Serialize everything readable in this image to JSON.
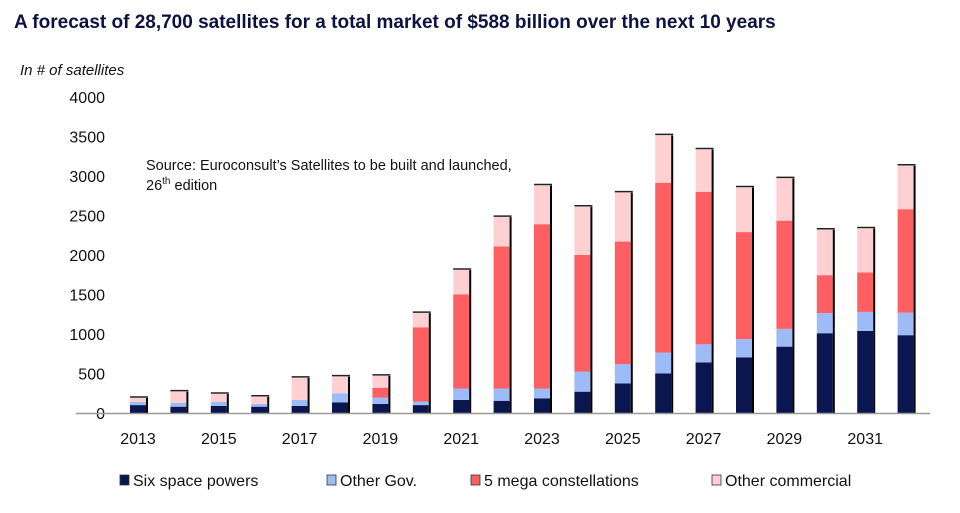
{
  "chart_data": {
    "type": "bar",
    "stacked": true,
    "title": "A forecast of 28,700 satellites for a total market of $588 billion over the next 10 years",
    "ylabel": "In # of satellites",
    "xlabel": "",
    "ylim": [
      0,
      4000
    ],
    "yticks": [
      0,
      500,
      1000,
      1500,
      2000,
      2500,
      3000,
      3500,
      4000
    ],
    "grid": false,
    "legend_position": "bottom",
    "annotation": {
      "line1": "Source: Euroconsult’s Satellites to be built and launched,",
      "line2_num": "26",
      "line2_sup": "th",
      "line2_rest": " edition"
    },
    "categories": [
      "2013",
      "2014",
      "2015",
      "2016",
      "2017",
      "2018",
      "2019",
      "2020",
      "2021",
      "2022",
      "2023",
      "2024",
      "2025",
      "2026",
      "2027",
      "2028",
      "2029",
      "2030",
      "2031",
      "2032"
    ],
    "xtick_labels": [
      "2013",
      "",
      "2015",
      "",
      "2017",
      "",
      "2019",
      "",
      "2021",
      "",
      "2023",
      "",
      "2025",
      "",
      "2027",
      "",
      "2029",
      "",
      "2031",
      ""
    ],
    "series": [
      {
        "name": "Six space powers",
        "color": "#0a1650",
        "values": [
          100,
          80,
          90,
          80,
          90,
          135,
          115,
          100,
          165,
          155,
          185,
          270,
          375,
          500,
          640,
          705,
          840,
          1010,
          1040,
          985
        ]
      },
      {
        "name": "Other Gov.",
        "color": "#9dbcf7",
        "values": [
          40,
          50,
          50,
          35,
          75,
          115,
          80,
          45,
          145,
          155,
          125,
          255,
          245,
          265,
          230,
          230,
          225,
          255,
          240,
          285
        ]
      },
      {
        "name": "5 mega constellations",
        "color": "#fd5f62",
        "values": [
          0,
          0,
          0,
          0,
          0,
          0,
          125,
          940,
          1190,
          1800,
          2080,
          1475,
          1550,
          2150,
          1930,
          1355,
          1370,
          480,
          500,
          1310
        ]
      },
      {
        "name": "Other commercial",
        "color": "#ffd0d2",
        "values": [
          50,
          140,
          100,
          90,
          280,
          210,
          150,
          180,
          310,
          370,
          490,
          610,
          620,
          600,
          535,
          565,
          535,
          575,
          555,
          550
        ]
      }
    ]
  }
}
